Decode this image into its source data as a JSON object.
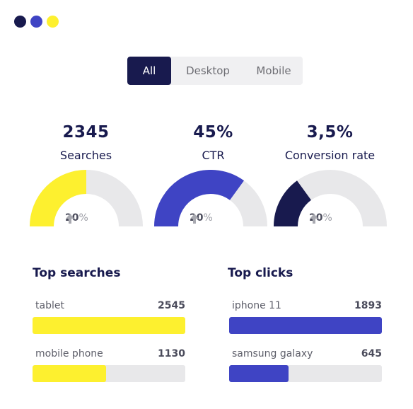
{
  "colors": {
    "navy": "#181a4e",
    "blue": "#3f44c4",
    "yellow": "#fdf02f",
    "track": "#e8e8ea"
  },
  "window_controls": [
    "#181a4e",
    "#3f44c4",
    "#fdf02f"
  ],
  "segmented": {
    "tabs": [
      {
        "label": "All",
        "active": true
      },
      {
        "label": "Desktop",
        "active": false
      },
      {
        "label": "Mobile",
        "active": false
      }
    ]
  },
  "stats": [
    {
      "value": "2345",
      "label": "Searches",
      "gauge_level": 0.5,
      "color": "#fdf02f",
      "change_num": "20",
      "change_unit": "%",
      "icon": "arrow-up-icon"
    },
    {
      "value": "45%",
      "label": "CTR",
      "gauge_level": 0.7,
      "color": "#3f44c4",
      "change_num": "20",
      "change_unit": "%",
      "icon": "arrow-up-icon"
    },
    {
      "value": "3,5%",
      "label": "Conversion rate",
      "gauge_level": 0.3,
      "color": "#181a4e",
      "change_num": "20",
      "change_unit": "%",
      "icon": "arrow-up-icon"
    }
  ],
  "top_searches": {
    "title": "Top searches",
    "items": [
      {
        "name": "tablet",
        "count": "2545",
        "fill": 1.0
      },
      {
        "name": "mobile phone",
        "count": "1130",
        "fill": 0.48
      }
    ]
  },
  "top_clicks": {
    "title": "Top clicks",
    "items": [
      {
        "name": "iphone 11",
        "count": "1893",
        "fill": 1.0
      },
      {
        "name": "samsung galaxy",
        "count": "645",
        "fill": 0.39
      }
    ]
  }
}
